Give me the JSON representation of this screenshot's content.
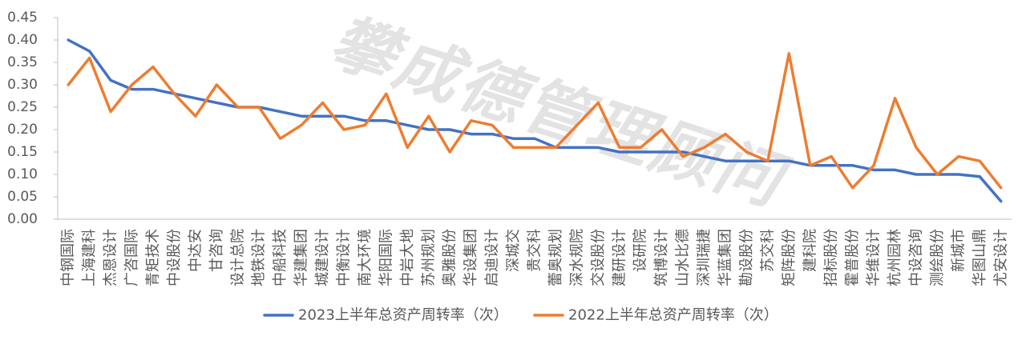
{
  "watermark": {
    "text": "攀成德管理顾问"
  },
  "chart_data": {
    "type": "line",
    "categories": [
      "中钢国际",
      "上海建科",
      "杰恩设计",
      "广咨国际",
      "青矩技术",
      "中设股份",
      "中达安",
      "甘咨询",
      "设计总院",
      "地铁设计",
      "中船科技",
      "华建集团",
      "城建设计",
      "中衡设计",
      "南大环境",
      "华阳国际",
      "中岩大地",
      "苏州规划",
      "奥雅股份",
      "华设集团",
      "启迪设计",
      "深城交",
      "贵交科",
      "蕾奥规划",
      "深水规院",
      "交设股份",
      "建研设计",
      "设研院",
      "筑博设计",
      "山水比德",
      "深圳瑞捷",
      "华蓝集团",
      "勘设股份",
      "苏交科",
      "矩阵股份",
      "建科院",
      "招标股份",
      "霍普股份",
      "华维设计",
      "杭州园林",
      "中设咨询",
      "测绘股份",
      "新城市",
      "华图山鼎",
      "尤安设计"
    ],
    "series": [
      {
        "name": "2023上半年总资产周转率（次）",
        "color": "#4472C4",
        "values": [
          0.4,
          0.375,
          0.31,
          0.29,
          0.29,
          0.28,
          0.27,
          0.26,
          0.25,
          0.25,
          0.24,
          0.23,
          0.23,
          0.23,
          0.22,
          0.22,
          0.21,
          0.2,
          0.2,
          0.19,
          0.19,
          0.18,
          0.18,
          0.16,
          0.16,
          0.16,
          0.15,
          0.15,
          0.15,
          0.15,
          0.14,
          0.13,
          0.13,
          0.13,
          0.13,
          0.12,
          0.12,
          0.12,
          0.11,
          0.11,
          0.1,
          0.1,
          0.1,
          0.095,
          0.04
        ]
      },
      {
        "name": "2022上半年总资产周转率（次）",
        "color": "#ED7D31",
        "values": [
          0.3,
          0.36,
          0.24,
          0.3,
          0.34,
          0.28,
          0.23,
          0.3,
          0.25,
          0.25,
          0.18,
          0.21,
          0.26,
          0.2,
          0.21,
          0.28,
          0.16,
          0.23,
          0.15,
          0.22,
          0.21,
          0.16,
          0.16,
          0.16,
          0.21,
          0.26,
          0.16,
          0.16,
          0.2,
          0.14,
          0.16,
          0.19,
          0.15,
          0.13,
          0.37,
          0.12,
          0.14,
          0.07,
          0.12,
          0.27,
          0.16,
          0.1,
          0.14,
          0.13,
          0.07
        ]
      }
    ],
    "ylim": [
      0,
      0.45
    ],
    "y_tick_labels": [
      "0.00",
      "0.05",
      "0.10",
      "0.15",
      "0.20",
      "0.25",
      "0.30",
      "0.35",
      "0.40",
      "0.45"
    ],
    "grid": false,
    "legend_position": "bottom"
  }
}
